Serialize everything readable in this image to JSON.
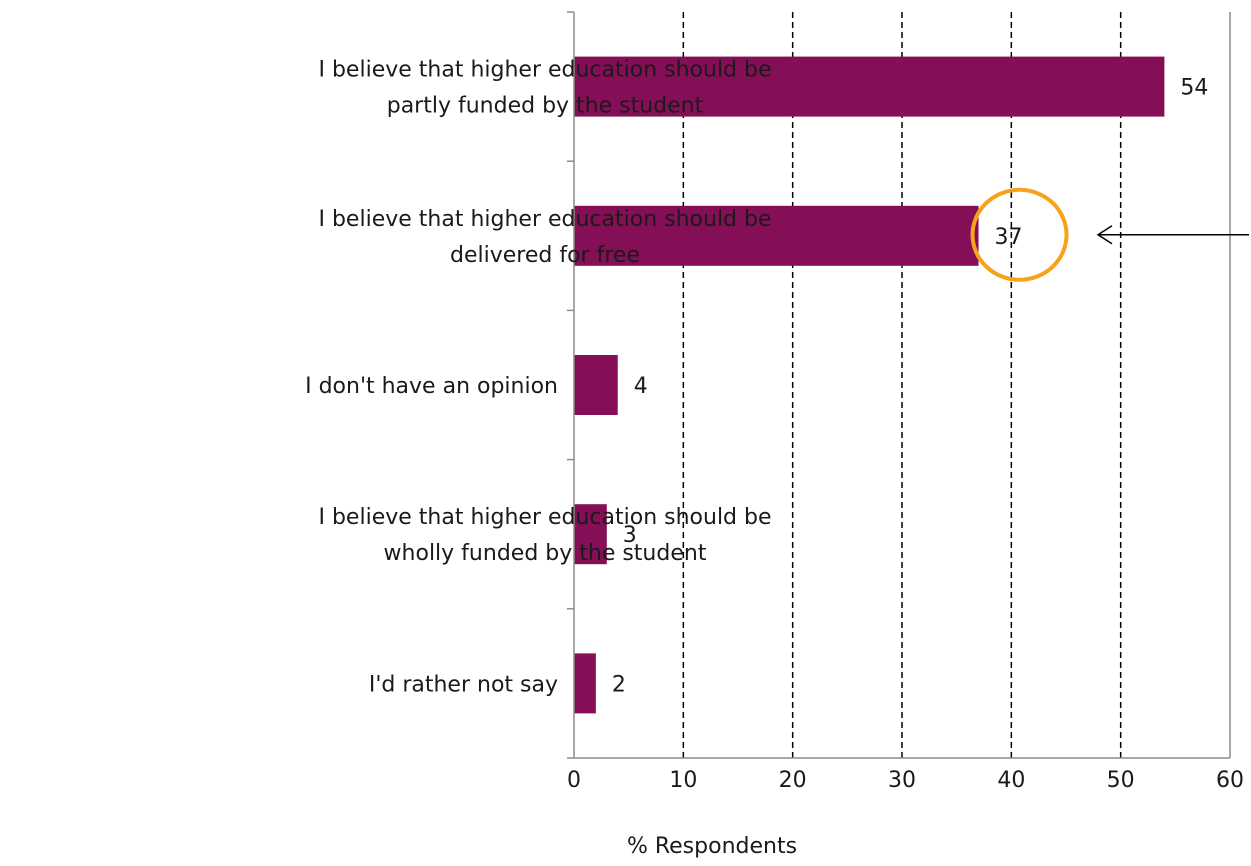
{
  "chart_data": {
    "type": "bar",
    "orientation": "horizontal",
    "categories": [
      [
        "I believe that higher education should be",
        "partly funded by the student"
      ],
      [
        "I believe that higher education should be",
        "delivered for free"
      ],
      [
        "I don't have an opinion"
      ],
      [
        "I believe that higher education should be",
        "wholly funded by the student"
      ],
      [
        "I'd rather not say"
      ]
    ],
    "values": [
      54,
      37,
      4,
      3,
      2
    ],
    "data_labels": [
      "54",
      "37",
      "4",
      "3",
      "2"
    ],
    "xlabel": "% Respondents",
    "xlim": [
      0,
      60
    ],
    "xticks": [
      0,
      10,
      20,
      30,
      40,
      50,
      60
    ],
    "grid": "vertical dashed",
    "bar_color": "#840F56",
    "highlight": {
      "category_index": 1,
      "shape": "circle",
      "color": "#F7A21B",
      "arrow": true
    }
  }
}
